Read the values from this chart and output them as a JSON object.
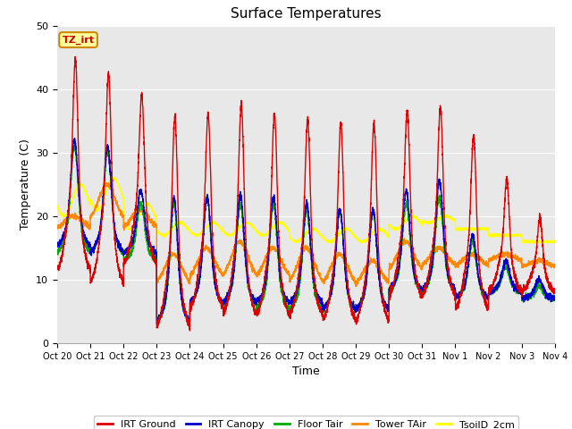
{
  "title": "Surface Temperatures",
  "xlabel": "Time",
  "ylabel": "Temperature (C)",
  "ylim": [
    0,
    50
  ],
  "background_color": "#ffffff",
  "plot_bg_color": "#e8e8e8",
  "tick_labels": [
    "Oct 20",
    "Oct 21",
    "Oct 22",
    "Oct 23",
    "Oct 24",
    "Oct 25",
    "Oct 26",
    "Oct 27",
    "Oct 28",
    "Oct 29",
    "Oct 30",
    "Oct 31",
    "Nov 1",
    "Nov 2",
    "Nov 3",
    "Nov 4"
  ],
  "annotation_text": "TZ_irt",
  "annotation_bg": "#ffff99",
  "annotation_border": "#cc8800",
  "series_colors": {
    "IRT Ground": "#dd0000",
    "IRT Canopy": "#0000cc",
    "Floor Tair": "#00aa00",
    "Tower TAir": "#ff8800",
    "TsoilD_2cm": "#ffff00"
  },
  "legend_entries": [
    "IRT Ground",
    "IRT Canopy",
    "Floor Tair",
    "Tower TAir",
    "TsoilD_2cm"
  ],
  "num_days": 15,
  "points_per_day": 288
}
